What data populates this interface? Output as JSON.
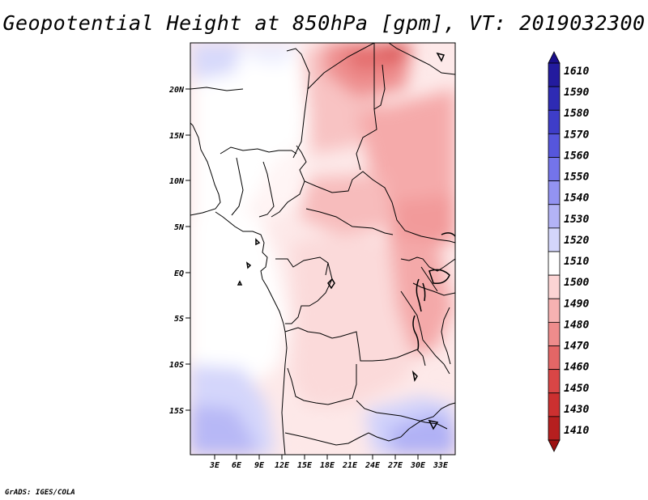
{
  "title": "Geopotential Height at 850hPa [gpm], VT: 2019032300",
  "credit": "GrADS: IGES/COLA",
  "axes": {
    "lat_labels": [
      "20N",
      "15N",
      "10N",
      "5N",
      "EQ",
      "5S",
      "10S",
      "15S"
    ],
    "lon_labels": [
      "3E",
      "6E",
      "9E",
      "12E",
      "15E",
      "18E",
      "21E",
      "24E",
      "27E",
      "30E",
      "33E"
    ]
  },
  "colorbar": {
    "labels": [
      "1610",
      "1590",
      "1580",
      "1570",
      "1560",
      "1550",
      "1540",
      "1530",
      "1520",
      "1510",
      "1500",
      "1490",
      "1480",
      "1470",
      "1460",
      "1450",
      "1430",
      "1410"
    ],
    "colors": [
      "#1a0e8a",
      "#231b9e",
      "#2e2bb4",
      "#3e3dc8",
      "#5656dc",
      "#7474ea",
      "#9393f2",
      "#b3b3f6",
      "#d4d6fb",
      "#ffffff",
      "#fcd4d4",
      "#f7b2b2",
      "#ee8c8c",
      "#e46666",
      "#d94646",
      "#cc3030",
      "#b61f1f",
      "#9c1010"
    ]
  }
}
